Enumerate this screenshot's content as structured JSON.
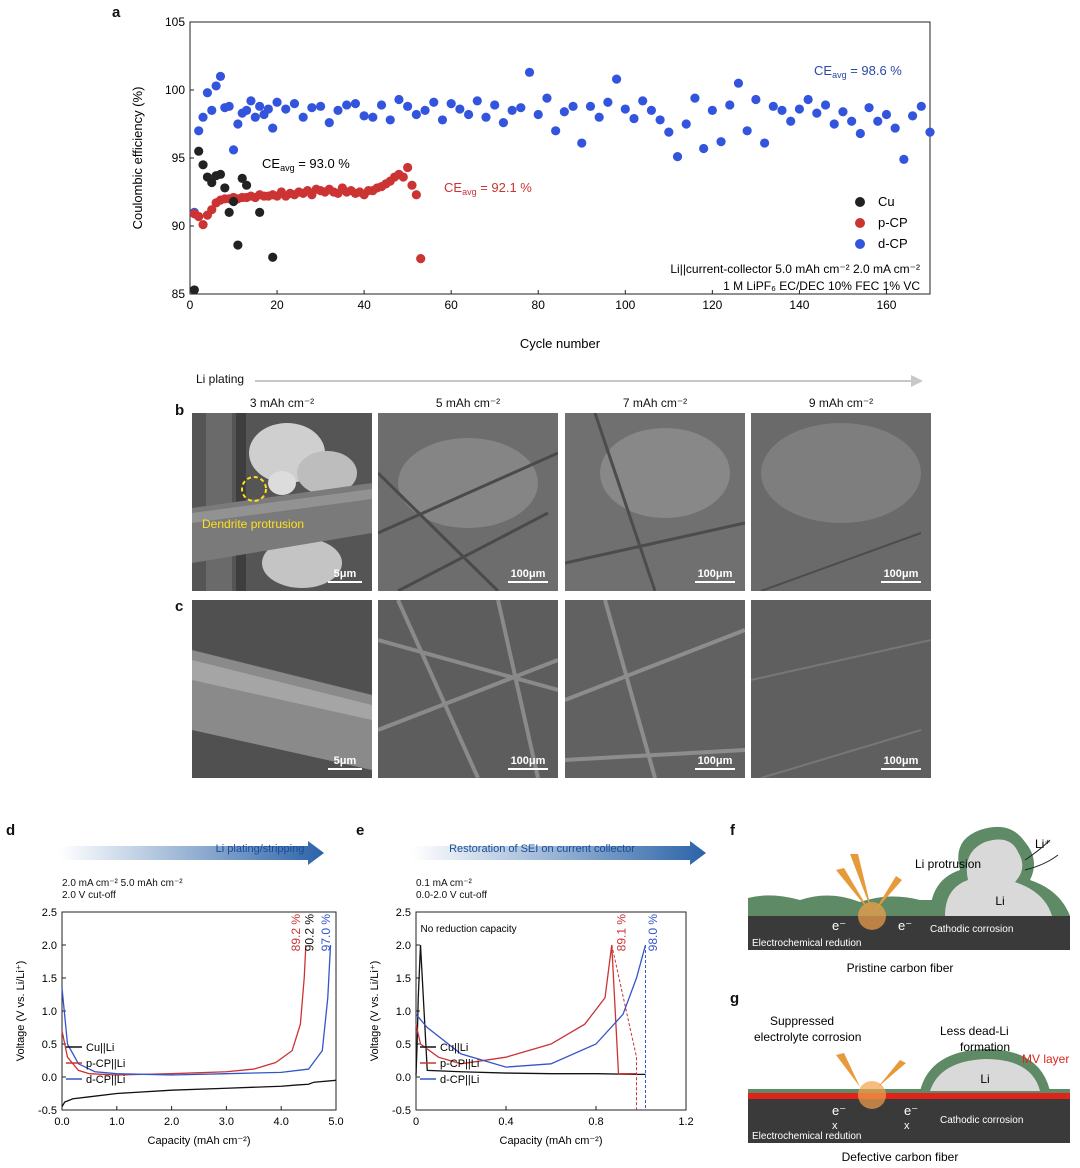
{
  "panel_labels": {
    "a": "a",
    "b": "b",
    "c": "c",
    "d": "d",
    "e": "e",
    "f": "f",
    "g": "g"
  },
  "panel_a": {
    "ce_cu_label": "CE",
    "ce_cu_sub": "avg",
    "ce_cu_value": " = 93.0 %",
    "ce_pcp_value": " = 92.1 %",
    "ce_dcp_value": " = 98.6 %",
    "conditions_line1": "Li||current-collector 5.0 mAh cm⁻² 2.0 mA cm⁻²",
    "conditions_line2": "1 M LiPF₆ EC/DEC 10% FEC 1% VC"
  },
  "li_plating_label": "Li plating",
  "sem_columns": [
    "3 mAh cm⁻²",
    "5 mAh cm⁻²",
    "7 mAh cm⁻²",
    "9 mAh cm⁻²"
  ],
  "sem_scalebars": {
    "small": "5μm",
    "large": "100μm"
  },
  "dendrite_label": "Dendrite protrusion",
  "panel_d": {
    "arrow_label": "Li plating/stripping",
    "cond1": "2.0 mA cm⁻² 5.0 mAh cm⁻²",
    "cond2": "2.0 V cut-off",
    "ce_labels": [
      "89.2 %",
      "90.2 %",
      "97.0 %"
    ]
  },
  "panel_e": {
    "arrow_label": "Restoration of SEI on current collector",
    "cond1": "0.1 mA cm⁻²",
    "cond2": "0.0-2.0 V cut-off",
    "note": "No reduction capacity",
    "ce_labels": [
      "89.1 %",
      "98.0 %"
    ]
  },
  "panel_f": {
    "li_plus": "Li⁺",
    "protrusion": "Li protrusion",
    "li": "Li",
    "e1": "e⁻",
    "e2": "e⁻",
    "redution": "Electrochemical redution",
    "corrosion": "Cathodic corrosion",
    "caption": "Pristine carbon fiber"
  },
  "panel_g": {
    "suppressed": "Suppressed",
    "electrolyte": "electrolyte corrosion",
    "less": "Less dead-Li",
    "formation": "formation",
    "mv": "MV layer",
    "li": "Li",
    "e1": "e⁻",
    "e2": "e⁻",
    "x1": "x",
    "x2": "x",
    "redution": "Electrochemical redution",
    "corrosion": "Cathodic corrosion",
    "caption": "Defective carbon fiber"
  },
  "chart_data": [
    {
      "type": "scatter",
      "title": "",
      "xlabel": "Cycle number",
      "ylabel": "Coulombic efficiency (%)",
      "xlim": [
        0,
        170
      ],
      "ylim": [
        85,
        105
      ],
      "xticks": [
        0,
        20,
        40,
        60,
        80,
        100,
        120,
        140,
        160
      ],
      "yticks": [
        85,
        90,
        95,
        100,
        105
      ],
      "legend_position": "right",
      "series": [
        {
          "name": "Cu",
          "color": "#222222",
          "x": [
            1,
            2,
            3,
            4,
            5,
            6,
            7,
            8,
            9,
            10,
            11,
            12,
            13,
            16,
            19
          ],
          "y": [
            85.3,
            95.5,
            94.5,
            93.6,
            93.2,
            93.7,
            93.8,
            92.8,
            91.0,
            91.8,
            88.6,
            93.5,
            93.0,
            91.0,
            87.7
          ]
        },
        {
          "name": "p-CP",
          "color": "#cc3333",
          "x": [
            1,
            2,
            3,
            4,
            5,
            6,
            7,
            8,
            9,
            10,
            11,
            12,
            13,
            14,
            15,
            16,
            17,
            18,
            19,
            20,
            21,
            22,
            23,
            24,
            25,
            26,
            27,
            28,
            29,
            30,
            31,
            32,
            33,
            34,
            35,
            36,
            37,
            38,
            39,
            40,
            41,
            42,
            43,
            44,
            45,
            46,
            47,
            48,
            49,
            50,
            51,
            52,
            53
          ],
          "y": [
            90.9,
            90.7,
            90.1,
            90.8,
            91.2,
            91.7,
            91.9,
            92.0,
            92.0,
            92.1,
            92.0,
            92.1,
            92.1,
            92.2,
            92.1,
            92.3,
            92.2,
            92.2,
            92.3,
            92.2,
            92.5,
            92.2,
            92.4,
            92.3,
            92.5,
            92.4,
            92.6,
            92.3,
            92.7,
            92.6,
            92.5,
            92.7,
            92.5,
            92.4,
            92.8,
            92.5,
            92.6,
            92.4,
            92.5,
            92.3,
            92.6,
            92.6,
            92.8,
            92.9,
            93.1,
            93.3,
            93.6,
            93.8,
            93.6,
            94.3,
            93.0,
            92.3,
            87.6
          ]
        },
        {
          "name": "d-CP",
          "color": "#3355dd",
          "x": [
            1,
            2,
            3,
            4,
            5,
            6,
            7,
            8,
            9,
            10,
            11,
            12,
            13,
            14,
            15,
            16,
            17,
            18,
            19,
            20,
            22,
            24,
            26,
            28,
            30,
            32,
            34,
            36,
            38,
            40,
            42,
            44,
            46,
            48,
            50,
            52,
            54,
            56,
            58,
            60,
            62,
            64,
            66,
            68,
            70,
            72,
            74,
            76,
            78,
            80,
            82,
            84,
            86,
            88,
            90,
            92,
            94,
            96,
            98,
            100,
            102,
            104,
            106,
            108,
            110,
            112,
            114,
            116,
            118,
            120,
            122,
            124,
            126,
            128,
            130,
            132,
            134,
            136,
            138,
            140,
            142,
            144,
            146,
            148,
            150,
            152,
            154,
            156,
            158,
            160,
            162,
            164,
            166,
            168,
            170
          ],
          "y": [
            91.0,
            97.0,
            98.0,
            99.8,
            98.5,
            100.3,
            101.0,
            98.7,
            98.8,
            95.6,
            97.5,
            98.3,
            98.5,
            99.2,
            98.0,
            98.8,
            98.2,
            98.6,
            97.2,
            99.1,
            98.6,
            99.0,
            98.0,
            98.7,
            98.8,
            97.6,
            98.5,
            98.9,
            99.0,
            98.1,
            98.0,
            98.9,
            97.8,
            99.3,
            98.8,
            98.2,
            98.5,
            99.1,
            97.8,
            99.0,
            98.6,
            98.2,
            99.2,
            98.0,
            98.9,
            97.6,
            98.5,
            98.7,
            101.3,
            98.2,
            99.4,
            97.0,
            98.4,
            98.8,
            96.1,
            98.8,
            98.0,
            99.1,
            100.8,
            98.6,
            97.9,
            99.2,
            98.5,
            97.8,
            96.9,
            95.1,
            97.5,
            99.4,
            95.7,
            98.5,
            96.2,
            98.9,
            100.5,
            97.0,
            99.3,
            96.1,
            98.8,
            98.5,
            97.7,
            98.6,
            99.3,
            98.3,
            98.9,
            97.5,
            98.4,
            97.7,
            96.8,
            98.7,
            97.7,
            98.2,
            97.2,
            94.9,
            98.1,
            98.8,
            96.9
          ]
        }
      ]
    },
    {
      "type": "line",
      "title": "",
      "xlabel": "Capacity (mAh cm⁻²)",
      "ylabel": "Voltage (V vs. Li/Li⁺)",
      "xlim": [
        0,
        5.0
      ],
      "ylim": [
        -0.5,
        2.5
      ],
      "xticks": [
        0,
        1.0,
        2.0,
        3.0,
        4.0,
        5.0
      ],
      "yticks": [
        -0.5,
        0.0,
        0.5,
        1.0,
        1.5,
        2.0,
        2.5
      ],
      "legend_position": "middle-left",
      "series": [
        {
          "name": "Cu||Li",
          "color": "#111111",
          "x": [
            0,
            0.05,
            0.2,
            0.5,
            1.0,
            2.0,
            3.0,
            4.0,
            4.3,
            4.5,
            4.56,
            4.6,
            5.0
          ],
          "y": [
            -0.45,
            -0.38,
            -0.33,
            -0.3,
            -0.25,
            -0.2,
            -0.17,
            -0.14,
            -0.12,
            -0.11,
            -0.09,
            -0.08,
            -0.05
          ]
        },
        {
          "name": "p-CP||Li",
          "color": "#cc3333",
          "x": [
            0,
            0.1,
            0.3,
            0.5,
            1.0,
            2.0,
            3.0,
            3.5,
            3.9,
            4.2,
            4.35,
            4.42,
            4.45
          ],
          "y": [
            0.7,
            0.3,
            0.1,
            0.05,
            0.03,
            0.05,
            0.08,
            0.12,
            0.22,
            0.4,
            0.8,
            1.5,
            2.0
          ]
        },
        {
          "name": "d-CP||Li",
          "color": "#3355cc",
          "x": [
            0,
            0.1,
            0.3,
            0.6,
            1.0,
            2.0,
            3.0,
            4.0,
            4.5,
            4.75,
            4.85,
            4.9
          ],
          "y": [
            1.35,
            0.5,
            0.2,
            0.08,
            0.05,
            0.03,
            0.05,
            0.07,
            0.12,
            0.4,
            1.2,
            2.0
          ]
        }
      ]
    },
    {
      "type": "line",
      "title": "",
      "xlabel": "Capacity (mAh cm⁻²)",
      "ylabel": "Voltage (V vs. Li/Li⁺)",
      "xlim": [
        0,
        1.2
      ],
      "ylim": [
        -0.5,
        2.5
      ],
      "xticks": [
        0,
        0.4,
        0.8,
        1.2
      ],
      "yticks": [
        -0.5,
        0.0,
        0.5,
        1.0,
        1.5,
        2.0,
        2.5
      ],
      "legend_position": "middle-left",
      "series": [
        {
          "name": "Cu||Li",
          "color": "#111111",
          "x": [
            0,
            0.005,
            0.01,
            0.02,
            0.05,
            0.2,
            0.4,
            0.6,
            0.8,
            0.98,
            1.02
          ],
          "y": [
            0.02,
            0.5,
            1.2,
            2.0,
            0.1,
            0.08,
            0.06,
            0.05,
            0.05,
            0.04,
            0.04
          ]
        },
        {
          "name": "p-CP||Li",
          "color": "#cc3333",
          "x": [
            0,
            0.02,
            0.1,
            0.2,
            0.4,
            0.6,
            0.75,
            0.84,
            0.87,
            0.9,
            0.98
          ],
          "y": [
            0.8,
            0.5,
            0.3,
            0.2,
            0.3,
            0.5,
            0.8,
            1.2,
            2.0,
            0.05,
            0.05
          ]
        },
        {
          "name": "d-CP||Li",
          "color": "#3355cc",
          "x": [
            0,
            0.05,
            0.2,
            0.4,
            0.6,
            0.8,
            0.92,
            0.98,
            1.02
          ],
          "y": [
            0.95,
            0.75,
            0.35,
            0.15,
            0.2,
            0.5,
            0.95,
            1.5,
            2.0
          ]
        }
      ]
    }
  ]
}
